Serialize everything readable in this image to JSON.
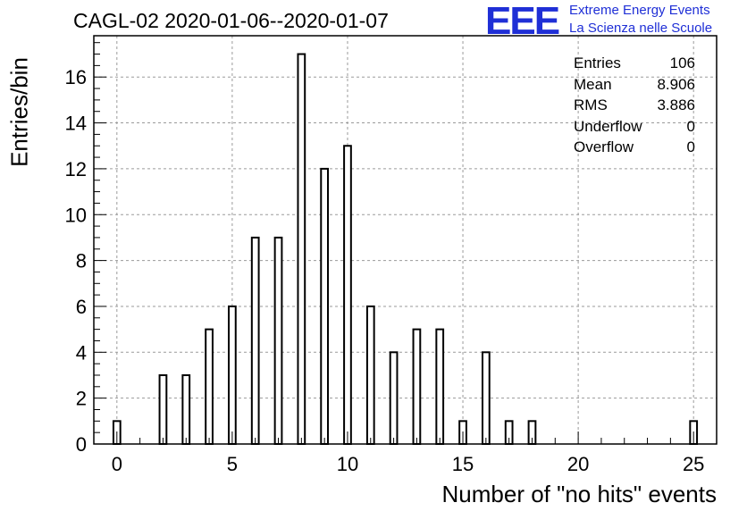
{
  "title": "CAGL-02 2020-01-06--2020-01-07",
  "logo": {
    "mark": "EEE",
    "line1": "Extreme Energy Events",
    "line2": "La Scienza nelle Scuole"
  },
  "stats": [
    {
      "label": "Entries",
      "value": "106"
    },
    {
      "label": "Mean",
      "value": "8.906"
    },
    {
      "label": "RMS",
      "value": "3.886"
    },
    {
      "label": "Underflow",
      "value": "0"
    },
    {
      "label": "Overflow",
      "value": "0"
    }
  ],
  "chart_data": {
    "type": "bar",
    "title": "CAGL-02 2020-01-06--2020-01-07",
    "xlabel": "Number of \"no hits\" events",
    "ylabel": "Entries/bin",
    "x": [
      0,
      2,
      3,
      4,
      5,
      6,
      7,
      8,
      9,
      10,
      11,
      12,
      13,
      14,
      15,
      16,
      17,
      18,
      25
    ],
    "values": [
      1,
      3,
      3,
      5,
      6,
      9,
      9,
      17,
      12,
      13,
      6,
      4,
      5,
      5,
      1,
      4,
      1,
      1,
      1
    ],
    "xlim": [
      -1,
      26
    ],
    "ylim": [
      0,
      17.8
    ],
    "xticks": [
      0,
      5,
      10,
      15,
      20,
      25
    ],
    "yticks": [
      0,
      2,
      4,
      6,
      8,
      10,
      12,
      14,
      16
    ],
    "grid": true,
    "legend": "top-right"
  }
}
